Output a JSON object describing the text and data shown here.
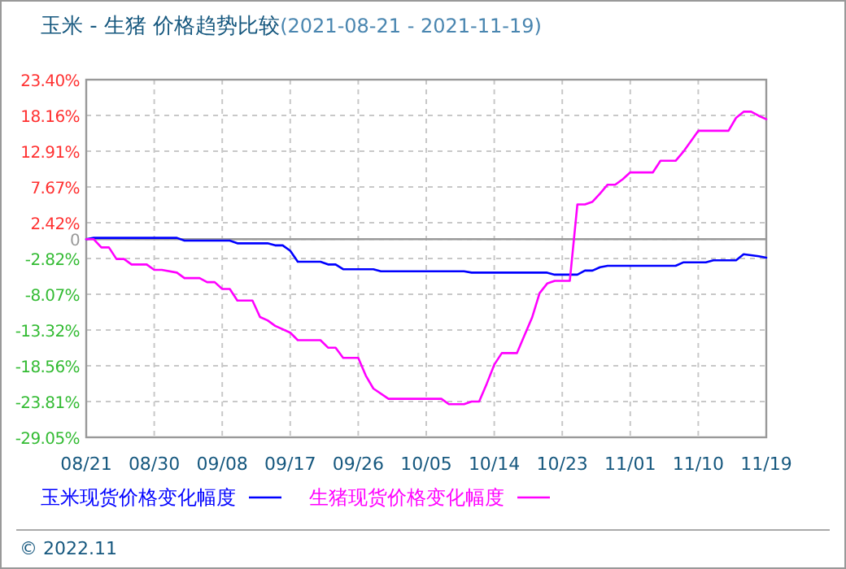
{
  "chart_data": {
    "type": "line",
    "title": "玉米 - 生猪 价格趋势比较",
    "subtitle": "(2021-08-21 - 2021-11-19)",
    "xlim": [
      "2021-08-21",
      "2021-11-19"
    ],
    "xticks": [
      {
        "value": "2021-08-21",
        "label": "08/21"
      },
      {
        "value": "2021-08-30",
        "label": "08/30"
      },
      {
        "value": "2021-09-08",
        "label": "09/08"
      },
      {
        "value": "2021-09-17",
        "label": "09/17"
      },
      {
        "value": "2021-09-26",
        "label": "09/26"
      },
      {
        "value": "2021-10-05",
        "label": "10/05"
      },
      {
        "value": "2021-10-14",
        "label": "10/14"
      },
      {
        "value": "2021-10-23",
        "label": "10/23"
      },
      {
        "value": "2021-11-01",
        "label": "11/01"
      },
      {
        "value": "2021-11-10",
        "label": "11/10"
      },
      {
        "value": "2021-11-19",
        "label": "11/19"
      }
    ],
    "ylim": [
      -29.05,
      23.4
    ],
    "yticks": [
      {
        "value": 23.4,
        "label": "23.40%"
      },
      {
        "value": 18.16,
        "label": "18.16%"
      },
      {
        "value": 12.91,
        "label": "12.91%"
      },
      {
        "value": 7.67,
        "label": "7.67%"
      },
      {
        "value": 2.42,
        "label": "2.42%"
      },
      {
        "value": 0,
        "label": "0"
      },
      {
        "value": -2.82,
        "label": "-2.82%"
      },
      {
        "value": -8.07,
        "label": "-8.07%"
      },
      {
        "value": -13.32,
        "label": "-13.32%"
      },
      {
        "value": -18.56,
        "label": "-18.56%"
      },
      {
        "value": -23.81,
        "label": "-23.81%"
      },
      {
        "value": -29.05,
        "label": "-29.05%"
      }
    ],
    "grid": true,
    "legend": "bottom",
    "line_style": "solid",
    "marker": "none",
    "ref_lines": [
      {
        "axis": "y",
        "value": 0,
        "color": "#999999",
        "line_style": "solid"
      }
    ],
    "annotations": [
      "© 2022.11"
    ],
    "series": [
      {
        "name": "玉米现货价格变化幅度",
        "color": "#0000ff",
        "x": [
          "2021-08-21",
          "2021-08-22",
          "2021-09-02",
          "2021-09-03",
          "2021-09-09",
          "2021-09-10",
          "2021-09-14",
          "2021-09-15",
          "2021-09-16",
          "2021-09-17",
          "2021-09-18",
          "2021-09-21",
          "2021-09-22",
          "2021-09-23",
          "2021-09-24",
          "2021-09-28",
          "2021-09-29",
          "2021-10-10",
          "2021-10-11",
          "2021-10-21",
          "2021-10-22",
          "2021-10-25",
          "2021-10-26",
          "2021-10-27",
          "2021-10-28",
          "2021-10-29",
          "2021-11-07",
          "2021-11-08",
          "2021-11-11",
          "2021-11-12",
          "2021-11-15",
          "2021-11-16",
          "2021-11-18",
          "2021-11-19"
        ],
        "values": [
          0,
          0.2,
          0.2,
          -0.2,
          -0.2,
          -0.6,
          -0.6,
          -0.9,
          -0.9,
          -1.7,
          -3.3,
          -3.3,
          -3.7,
          -3.7,
          -4.4,
          -4.4,
          -4.7,
          -4.7,
          -4.9,
          -4.9,
          -5.2,
          -5.2,
          -4.6,
          -4.6,
          -4.1,
          -3.9,
          -3.9,
          -3.4,
          -3.4,
          -3.1,
          -3.1,
          -2.2,
          -2.5,
          -2.7
        ]
      },
      {
        "name": "生猪现货价格变化幅度",
        "color": "#ff00ff",
        "x": [
          "2021-08-21",
          "2021-08-22",
          "2021-08-23",
          "2021-08-24",
          "2021-08-25",
          "2021-08-26",
          "2021-08-27",
          "2021-08-29",
          "2021-08-30",
          "2021-08-31",
          "2021-09-02",
          "2021-09-03",
          "2021-09-05",
          "2021-09-06",
          "2021-09-07",
          "2021-09-08",
          "2021-09-09",
          "2021-09-10",
          "2021-09-12",
          "2021-09-13",
          "2021-09-14",
          "2021-09-15",
          "2021-09-17",
          "2021-09-18",
          "2021-09-21",
          "2021-09-22",
          "2021-09-23",
          "2021-09-24",
          "2021-09-26",
          "2021-09-27",
          "2021-09-28",
          "2021-09-30",
          "2021-10-07",
          "2021-10-08",
          "2021-10-10",
          "2021-10-11",
          "2021-10-12",
          "2021-10-13",
          "2021-10-14",
          "2021-10-15",
          "2021-10-17",
          "2021-10-18",
          "2021-10-19",
          "2021-10-20",
          "2021-10-21",
          "2021-10-22",
          "2021-10-24",
          "2021-10-25",
          "2021-10-26",
          "2021-10-27",
          "2021-10-28",
          "2021-10-29",
          "2021-10-30",
          "2021-10-31",
          "2021-11-01",
          "2021-11-04",
          "2021-11-05",
          "2021-11-07",
          "2021-11-08",
          "2021-11-10",
          "2021-11-14",
          "2021-11-15",
          "2021-11-16",
          "2021-11-17",
          "2021-11-18",
          "2021-11-19"
        ],
        "values": [
          0,
          0,
          -1.2,
          -1.2,
          -2.9,
          -2.9,
          -3.7,
          -3.7,
          -4.5,
          -4.5,
          -4.9,
          -5.7,
          -5.7,
          -6.3,
          -6.3,
          -7.3,
          -7.3,
          -9.0,
          -9.0,
          -11.4,
          -11.9,
          -12.7,
          -13.7,
          -14.8,
          -14.8,
          -15.9,
          -15.9,
          -17.4,
          -17.4,
          -20.0,
          -21.9,
          -23.4,
          -23.4,
          -24.2,
          -24.2,
          -23.8,
          -23.8,
          -21.2,
          -18.4,
          -16.7,
          -16.7,
          -14.1,
          -11.5,
          -7.9,
          -6.5,
          -6.1,
          -6.1,
          5.1,
          5.1,
          5.5,
          6.7,
          8.0,
          8.0,
          8.8,
          9.8,
          9.8,
          11.5,
          11.5,
          12.8,
          15.9,
          15.9,
          17.8,
          18.7,
          18.7,
          18.1,
          17.6
        ]
      }
    ]
  }
}
